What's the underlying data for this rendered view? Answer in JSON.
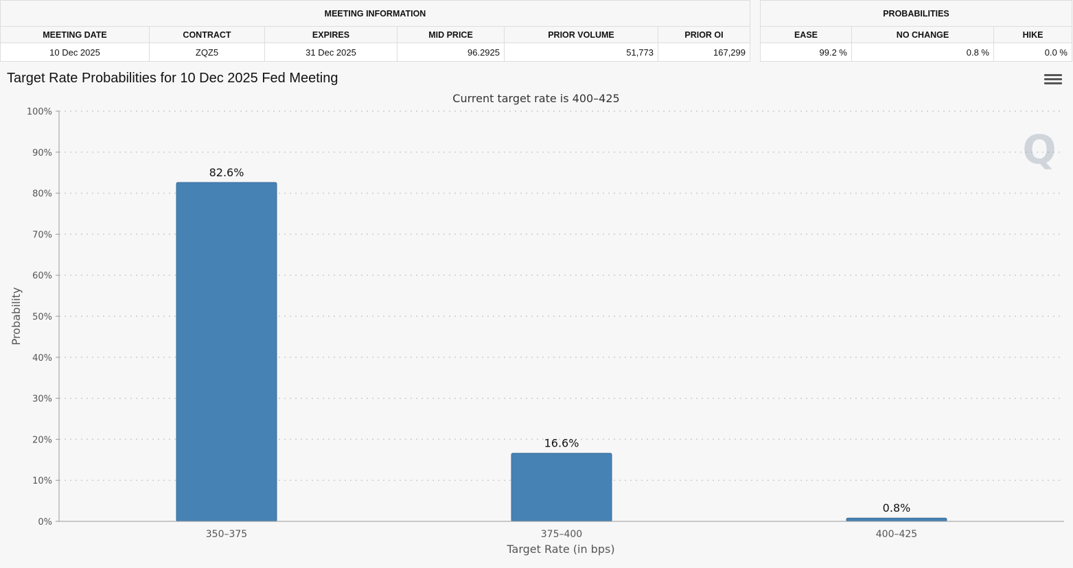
{
  "meeting_info": {
    "group_title": "MEETING INFORMATION",
    "headers": [
      "MEETING DATE",
      "CONTRACT",
      "EXPIRES",
      "MID PRICE",
      "PRIOR VOLUME",
      "PRIOR OI"
    ],
    "row": [
      "10 Dec 2025",
      "ZQZ5",
      "31 Dec 2025",
      "96.2925",
      "51,773",
      "167,299"
    ]
  },
  "probabilities": {
    "group_title": "PROBABILITIES",
    "headers": [
      "EASE",
      "NO CHANGE",
      "HIKE"
    ],
    "row": [
      "99.2 %",
      "0.8 %",
      "0.0 %"
    ]
  },
  "chart_title": "Target Rate Probabilities for 10 Dec 2025 Fed Meeting",
  "colors": {
    "bar": "#4682b4",
    "grid": "#cccccc",
    "axis": "#999999"
  },
  "chart_data": {
    "type": "bar",
    "title": "Target Rate Probabilities for 10 Dec 2025 Fed Meeting",
    "subtitle": "Current target rate is 400–425",
    "categories": [
      "350–375",
      "375–400",
      "400–425"
    ],
    "values": [
      82.6,
      16.6,
      0.8
    ],
    "data_labels": [
      "82.6%",
      "16.6%",
      "0.8%"
    ],
    "xlabel": "Target Rate (in bps)",
    "ylabel": "Probability",
    "ylim": [
      0,
      100
    ],
    "yticks": [
      0,
      10,
      20,
      30,
      40,
      50,
      60,
      70,
      80,
      90,
      100
    ],
    "ytick_labels": [
      "0%",
      "10%",
      "20%",
      "30%",
      "40%",
      "50%",
      "60%",
      "70%",
      "80%",
      "90%",
      "100%"
    ],
    "grid": true
  }
}
